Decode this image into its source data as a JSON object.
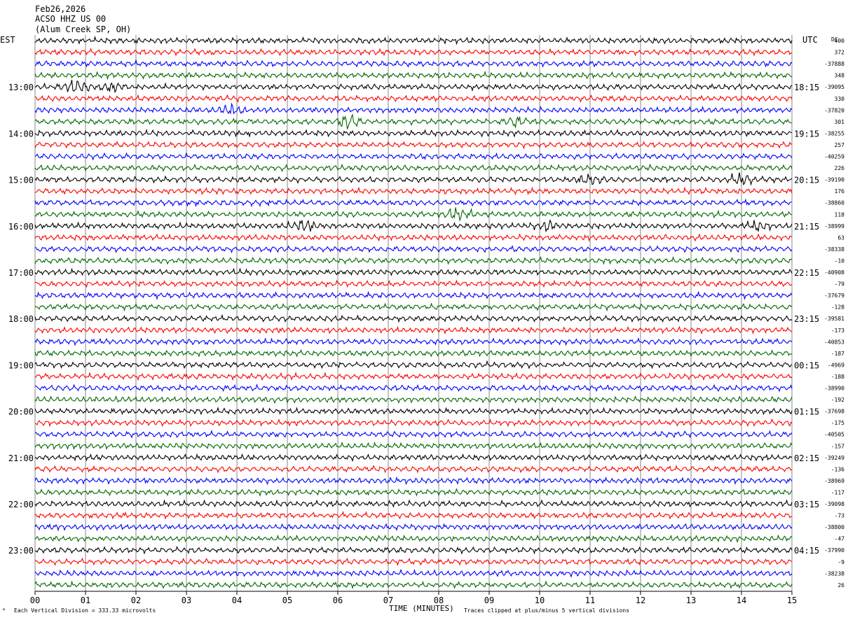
{
  "header": {
    "date": "Feb26,2026",
    "station": "ACSO HHZ US 00",
    "location": "(Alum Creek SP, OH)"
  },
  "left_tz": "EST",
  "right_tz": "UTC",
  "dc_label": "DC",
  "footer": {
    "scale": "Each Vertical Division =  333.33 microvolts",
    "clip": "Traces clipped at plus/minus 5 vertical divisions"
  },
  "chart_data": {
    "type": "line",
    "subtype": "helicorder",
    "xlabel": "TIME (MINUTES)",
    "x_ticks": [
      "00",
      "01",
      "02",
      "03",
      "04",
      "05",
      "06",
      "07",
      "08",
      "09",
      "10",
      "11",
      "12",
      "13",
      "14",
      "15"
    ],
    "xlim": [
      0,
      15
    ],
    "trace_minutes": 15,
    "trace_count": 48,
    "trace_colors": [
      "#000000",
      "#ff0000",
      "#0000ff",
      "#006600"
    ],
    "grid": true,
    "hour_labels_left": [
      "13:00",
      "14:00",
      "15:00",
      "16:00",
      "17:00",
      "18:00",
      "19:00",
      "20:00",
      "21:00",
      "22:00",
      "23:00"
    ],
    "hour_labels_right": [
      "18:15",
      "19:15",
      "20:15",
      "21:15",
      "22:15",
      "23:15",
      "00:15",
      "01:15",
      "02:15",
      "03:15",
      "04:15"
    ],
    "dc_offsets": [
      "400",
      "372",
      "-37888",
      "348",
      "-39095",
      "330",
      "-37820",
      "301",
      "-38255",
      "257",
      "-40259",
      "226",
      "-39190",
      "176",
      "-38860",
      "118",
      "-38999",
      "63",
      "-38338",
      "-10",
      "-40908",
      "-79",
      "-37679",
      "-128",
      "-39581",
      "-173",
      "-40853",
      "-187",
      "-4969",
      "-188",
      "-38990",
      "-192",
      "-37698",
      "-175",
      "-40505",
      "-157",
      "-39249",
      "-136",
      "-38969",
      "-117",
      "-39098",
      "-73",
      "-38800",
      "-47",
      "-37990",
      "-9",
      "-38238",
      "26"
    ],
    "events": [
      {
        "trace": 4,
        "minute": 0.8,
        "amp": 3.2
      },
      {
        "trace": 4,
        "minute": 1.5,
        "amp": 1.4
      },
      {
        "trace": 6,
        "minute": 3.9,
        "amp": 1.6
      },
      {
        "trace": 7,
        "minute": 6.2,
        "amp": 2.2
      },
      {
        "trace": 7,
        "minute": 9.5,
        "amp": 1.4
      },
      {
        "trace": 12,
        "minute": 11.0,
        "amp": 1.5
      },
      {
        "trace": 12,
        "minute": 14.0,
        "amp": 2.0
      },
      {
        "trace": 15,
        "minute": 8.4,
        "amp": 2.2
      },
      {
        "trace": 16,
        "minute": 5.3,
        "amp": 1.8
      },
      {
        "trace": 16,
        "minute": 10.1,
        "amp": 1.8
      },
      {
        "trace": 16,
        "minute": 14.3,
        "amp": 1.6
      }
    ]
  }
}
